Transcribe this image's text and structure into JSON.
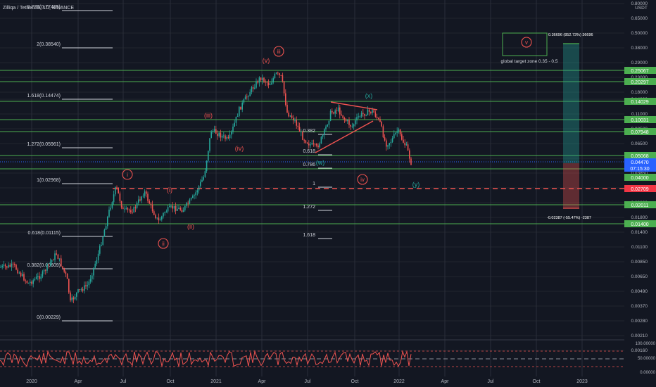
{
  "header": {
    "symbol_text": "Zilliqa / TetherUS, 1D, BINANCE",
    "currency": "USDT"
  },
  "colors": {
    "background": "#131722",
    "up": "#26a69a",
    "down": "#ef5350",
    "grid": "#2a2e39",
    "level_line": "#4caf50",
    "wave_red": "#ef5350",
    "wave_teal": "#26a69a",
    "axis_text": "#b2b5be",
    "current_tag": "#2962ff"
  },
  "price_axis": {
    "scale": "log",
    "ticks": [
      "0.80000",
      "0.65000",
      "0.50000",
      "0.38000",
      "0.29000",
      "0.23000",
      "0.18000",
      "0.14000",
      "0.11000",
      "0.08500",
      "0.06500",
      "0.05000",
      "0.03850",
      "0.03000",
      "0.02300",
      "0.01800",
      "0.01400",
      "0.01100",
      "0.00850",
      "0.00650",
      "0.00490",
      "0.00370",
      "0.00280",
      "0.00210",
      "0.00160"
    ]
  },
  "time_axis": {
    "labels": [
      "2020",
      "Apr",
      "Jul",
      "Oct",
      "2021",
      "Apr",
      "Jul",
      "Oct",
      "2022",
      "Apr",
      "Jul",
      "Oct",
      "2023"
    ]
  },
  "price_tags": [
    {
      "text": "0.25067",
      "kind": "green"
    },
    {
      "text": "0.20297",
      "kind": "green"
    },
    {
      "text": "0.14029",
      "kind": "green"
    },
    {
      "text": "0.10031",
      "kind": "green"
    },
    {
      "text": "0.07948",
      "kind": "green"
    },
    {
      "text": "0.05068",
      "kind": "green"
    },
    {
      "text": "0.04470",
      "kind": "blue"
    },
    {
      "text": "07:15:30",
      "kind": "blue"
    },
    {
      "text": "0.04000",
      "kind": "green"
    },
    {
      "text": "0.02709",
      "kind": "red"
    },
    {
      "text": "0.02011",
      "kind": "green"
    },
    {
      "text": "0.01400",
      "kind": "green"
    }
  ],
  "fib_left": [
    {
      "text": "2.272(0.77405)"
    },
    {
      "text": "2(0.38540)"
    },
    {
      "text": "1.618(0.14474)"
    },
    {
      "text": "1.272(0.05961)"
    },
    {
      "text": "1(0.02968)"
    },
    {
      "text": "0.618(0.01115)"
    },
    {
      "text": "0.382(0.00609)"
    },
    {
      "text": "0(0.00229)"
    }
  ],
  "fib_mid": [
    {
      "text": "0.382"
    },
    {
      "text": "0.618"
    },
    {
      "text": "0.786"
    },
    {
      "text": "1"
    },
    {
      "text": "1.272"
    },
    {
      "text": "1.618"
    }
  ],
  "waves": [
    {
      "text": "i",
      "color": "red",
      "circled": true
    },
    {
      "text": "ii",
      "color": "red",
      "circled": true
    },
    {
      "text": "iii",
      "color": "red",
      "circled": true
    },
    {
      "text": "iv",
      "color": "red",
      "circled": true
    },
    {
      "text": "v",
      "color": "red",
      "circled": true
    },
    {
      "text": "(i)",
      "color": "red",
      "circled": false
    },
    {
      "text": "(ii)",
      "color": "red",
      "circled": false
    },
    {
      "text": "(iii)",
      "color": "red",
      "circled": false
    },
    {
      "text": "(iv)",
      "color": "red",
      "circled": false
    },
    {
      "text": "(v)",
      "color": "red",
      "circled": false
    },
    {
      "text": "(w)",
      "color": "teal",
      "circled": false
    },
    {
      "text": "(x)",
      "color": "teal",
      "circled": false
    },
    {
      "text": "(y)",
      "color": "teal",
      "circled": false
    }
  ],
  "target": {
    "zone_text": "global target zone 0.35 - 0.5",
    "gain_text": "0.36696 (852.73%) 36696",
    "loss_text": "-0.02387 (-55.47%) -2387"
  },
  "rsi_axis": {
    "ticks": [
      "100.00000",
      "50.00000",
      "0.00000"
    ]
  }
}
